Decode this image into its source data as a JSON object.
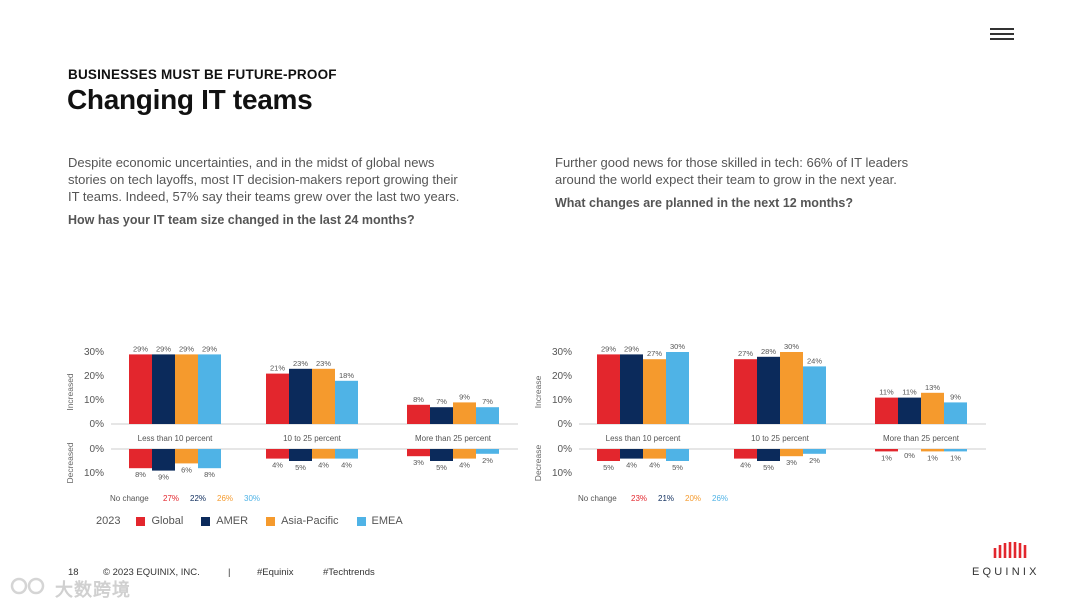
{
  "header": {
    "kicker": "BUSINESSES MUST BE FUTURE-PROOF",
    "title": "Changing IT teams"
  },
  "left": {
    "lines": [
      "Despite economic uncertainties, and in the midst of global news",
      "stories on tech layoffs, most IT decision-makers report growing their",
      "IT teams. Indeed, 57% say their teams grew over the last two years."
    ],
    "question": "How has your IT team size changed in the last 24 months?"
  },
  "right": {
    "lines": [
      "Further good news for those skilled in tech: 66% of IT leaders",
      "around the world expect their team to grow in the next year."
    ],
    "question": "What changes are planned in the next 12 months?"
  },
  "colors": {
    "Global": "#e3262d",
    "AMER": "#0b2a5b",
    "Asia-Pacific": "#f59a2d",
    "EMEA": "#4fb3e6"
  },
  "chart_data": [
    {
      "type": "bar",
      "categories": [
        "Less than 10 percent",
        "10 to 25 percent",
        "More than 25 percent"
      ],
      "series_names": [
        "Global",
        "AMER",
        "Asia-Pacific",
        "EMEA"
      ],
      "increased": [
        [
          29,
          29,
          29,
          29
        ],
        [
          21,
          23,
          23,
          18
        ],
        [
          8,
          7,
          9,
          7
        ]
      ],
      "decreased": [
        [
          8,
          9,
          6,
          8
        ],
        [
          4,
          5,
          4,
          4
        ],
        [
          3,
          5,
          4,
          2
        ]
      ],
      "ylabel_up": "Increased",
      "ylabel_down": "Decreased",
      "yticks_up": [
        "30%",
        "20%",
        "10%",
        "0%"
      ],
      "yticks_down": [
        "0%",
        "10%"
      ],
      "no_change_label": "No change",
      "no_change": [
        "27%",
        "22%",
        "26%",
        "30%"
      ]
    },
    {
      "type": "bar",
      "categories": [
        "Less than 10 percent",
        "10 to 25 percent",
        "More than 25 percent"
      ],
      "series_names": [
        "Global",
        "AMER",
        "Asia-Pacific",
        "EMEA"
      ],
      "increased": [
        [
          29,
          29,
          27,
          30
        ],
        [
          27,
          28,
          30,
          24
        ],
        [
          11,
          11,
          13,
          9
        ]
      ],
      "decreased": [
        [
          5,
          4,
          4,
          5
        ],
        [
          4,
          5,
          3,
          2
        ],
        [
          1,
          0,
          1,
          1
        ]
      ],
      "ylabel_up": "Increase",
      "ylabel_down": "Decrease",
      "yticks_up": [
        "30%",
        "20%",
        "10%",
        "0%"
      ],
      "yticks_down": [
        "0%",
        "10%"
      ],
      "no_change_label": "No change",
      "no_change": [
        "23%",
        "21%",
        "20%",
        "26%"
      ]
    }
  ],
  "legend": {
    "year": "2023",
    "items": [
      "Global",
      "AMER",
      "Asia-Pacific",
      "EMEA"
    ]
  },
  "footer": {
    "page": "18",
    "copyright": "© 2023 EQUINIX, INC.",
    "sep": "|",
    "tag1": "#Equinix",
    "tag2": "#Techtrends"
  },
  "logo": {
    "text": "EQUINIX"
  },
  "watermark": "大数跨境"
}
